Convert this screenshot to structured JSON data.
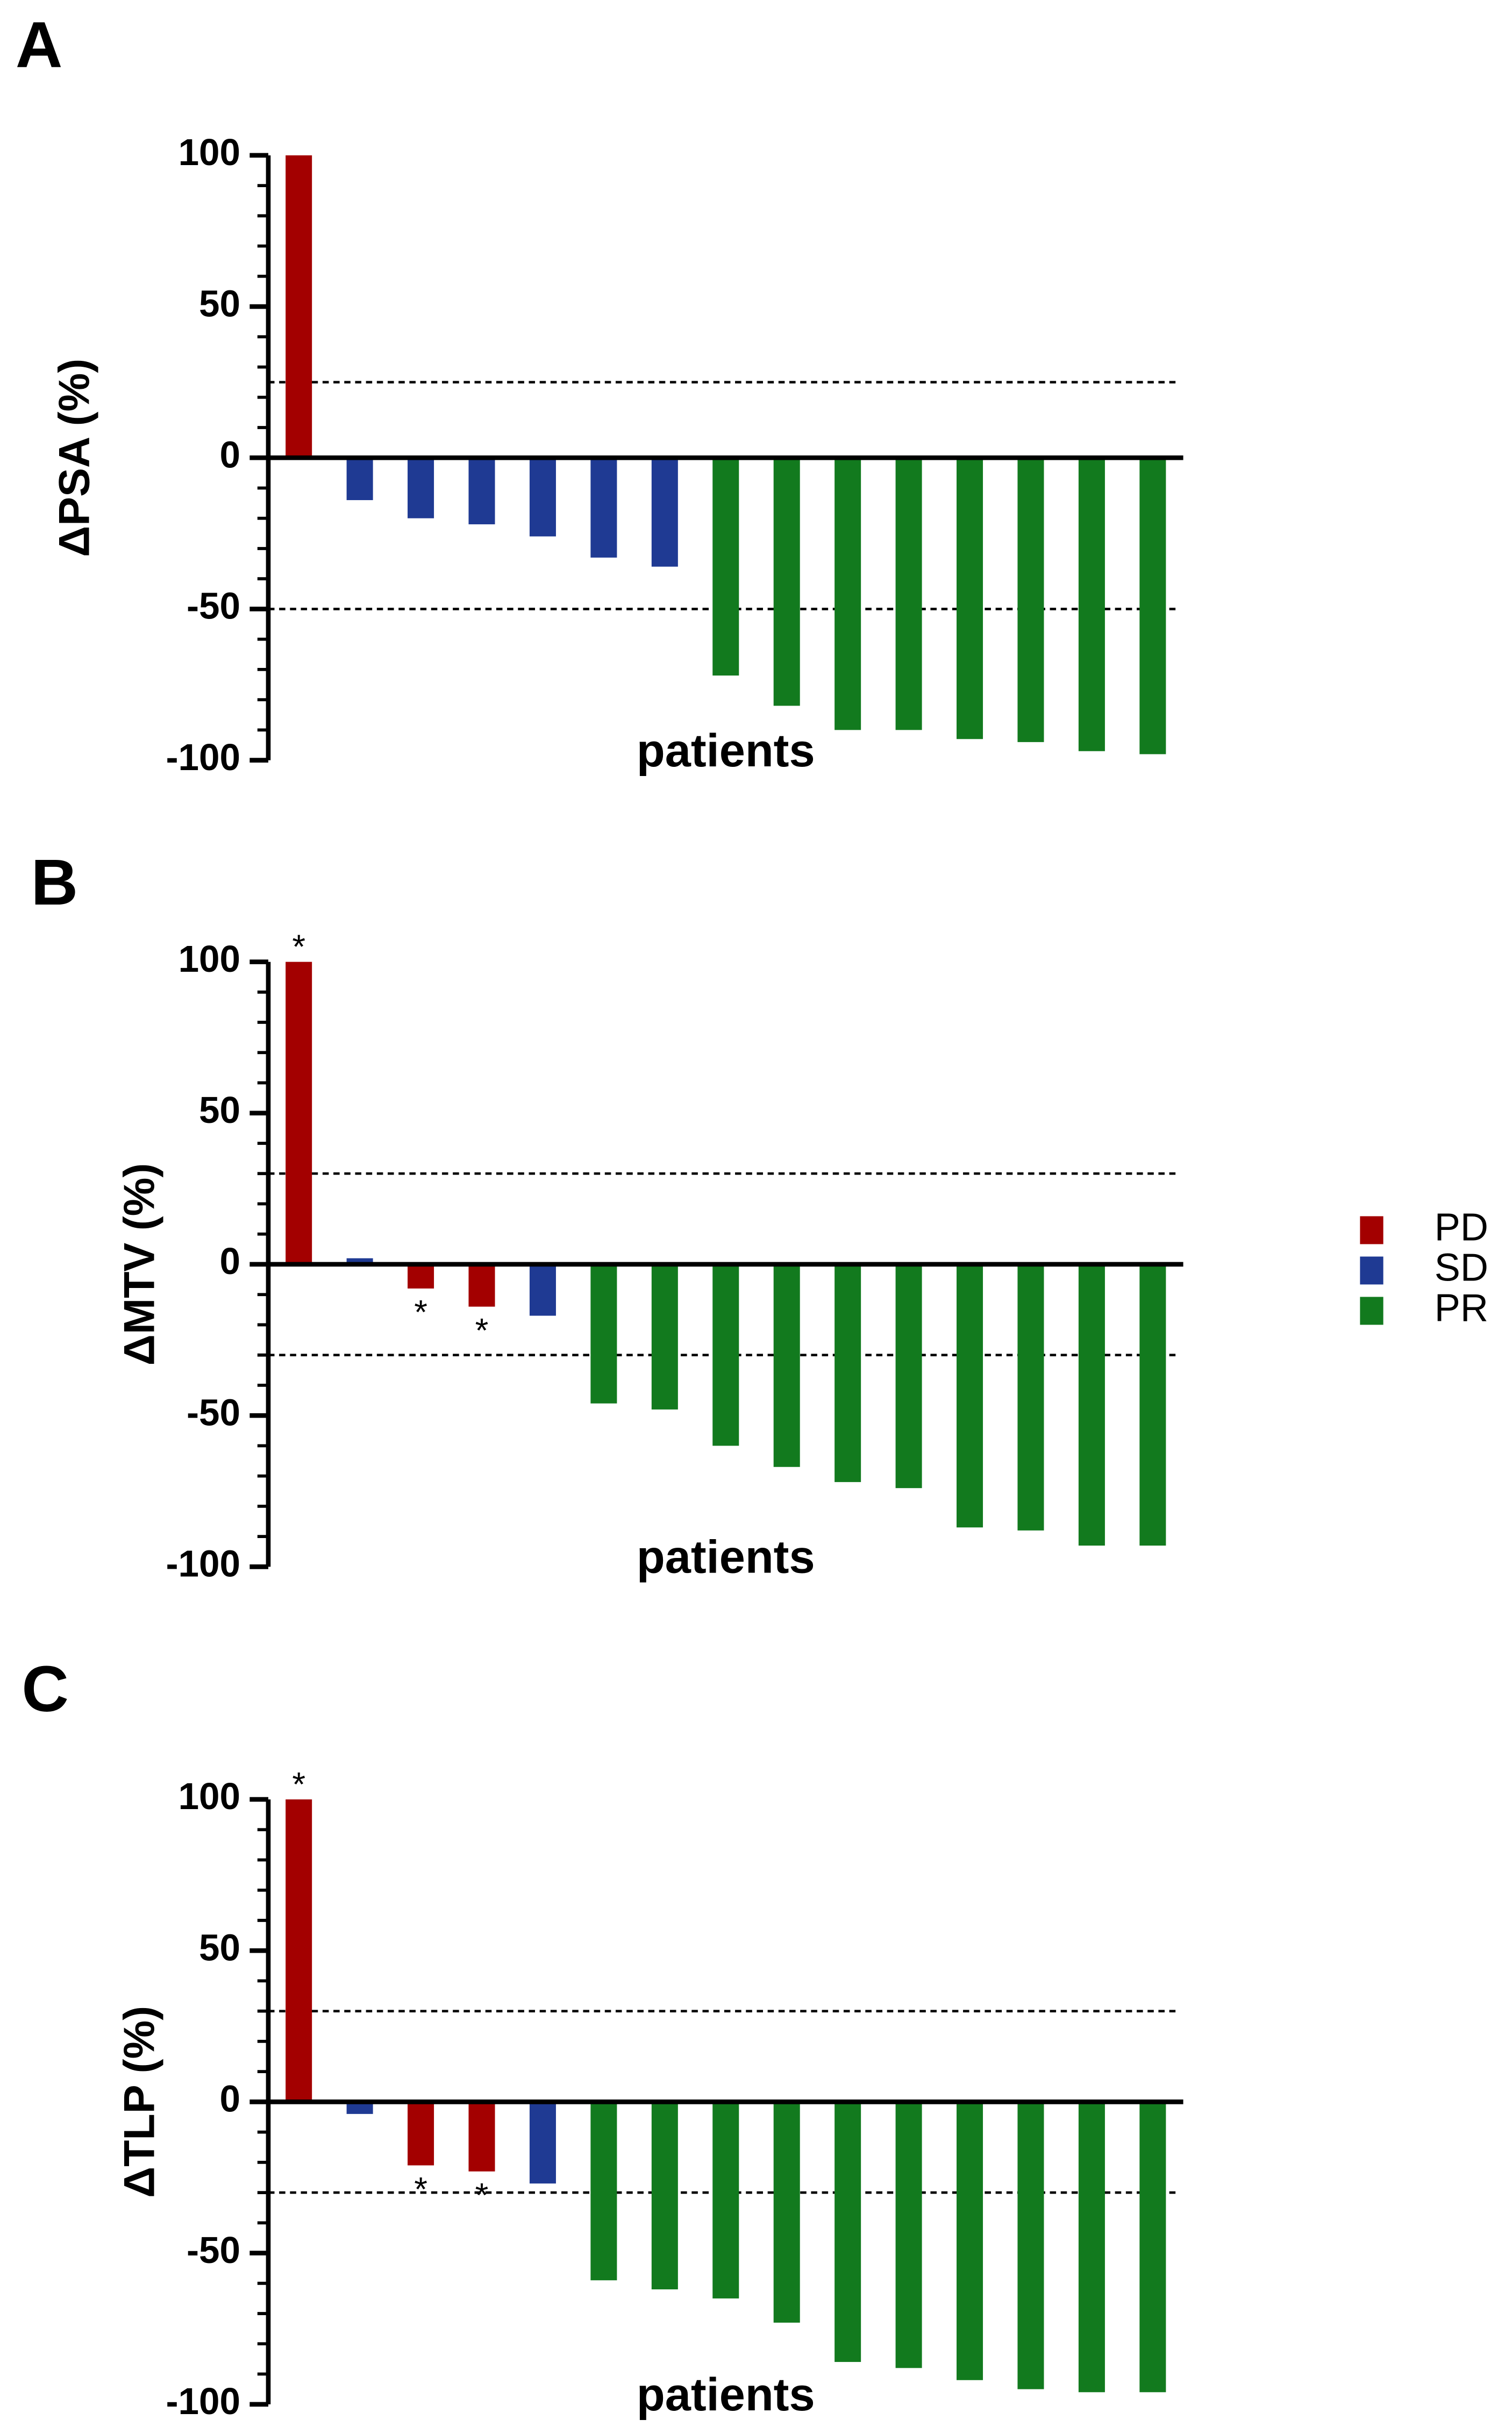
{
  "chart_data": [
    {
      "type": "bar",
      "panel": "A",
      "y_label": "ΔPSA (%)",
      "x_label": "patients",
      "categories": [
        null,
        null,
        null,
        null,
        null,
        null,
        null,
        null,
        null,
        null,
        null,
        null,
        null,
        null,
        null
      ],
      "series": [
        {
          "name": "PD",
          "color": "#a30000",
          "values": [
            100,
            null,
            null,
            null,
            null,
            null,
            null,
            null,
            null,
            null,
            null,
            null,
            null,
            null,
            null
          ]
        },
        {
          "name": "SD",
          "color": "#1f3a93",
          "values": [
            null,
            -14,
            -20,
            -22,
            -26,
            -33,
            -36,
            null,
            null,
            null,
            null,
            null,
            null,
            null,
            null
          ]
        },
        {
          "name": "PR",
          "color": "#127a1e",
          "values": [
            null,
            null,
            null,
            null,
            null,
            null,
            null,
            -72,
            -82,
            -90,
            -90,
            -93,
            -94,
            -97,
            -98
          ]
        }
      ],
      "annotations": [
        null,
        null,
        null,
        null,
        null,
        null,
        null,
        null,
        null,
        null,
        null,
        null,
        null,
        null,
        null
      ],
      "reference_lines": [
        25,
        -50
      ],
      "ylim": [
        -100,
        100
      ],
      "yticks": [
        -100,
        -50,
        0,
        50,
        100
      ],
      "minor_yticks": [
        -90,
        -80,
        -70,
        -60,
        -40,
        -30,
        -20,
        -10,
        10,
        20,
        30,
        40,
        60,
        70,
        80,
        90
      ]
    },
    {
      "type": "bar",
      "panel": "B",
      "y_label": "ΔMTV (%)",
      "x_label": "patients",
      "categories": [
        null,
        null,
        null,
        null,
        null,
        null,
        null,
        null,
        null,
        null,
        null,
        null,
        null,
        null,
        null
      ],
      "series": [
        {
          "name": "PD",
          "color": "#a30000",
          "values": [
            100,
            null,
            -8,
            -14,
            null,
            null,
            null,
            null,
            null,
            null,
            null,
            null,
            null,
            null,
            null
          ]
        },
        {
          "name": "SD",
          "color": "#1f3a93",
          "values": [
            null,
            2,
            null,
            null,
            -17,
            null,
            null,
            null,
            null,
            null,
            null,
            null,
            null,
            null,
            null
          ]
        },
        {
          "name": "PR",
          "color": "#127a1e",
          "values": [
            null,
            null,
            null,
            null,
            null,
            -46,
            -48,
            -60,
            -67,
            -72,
            -74,
            -87,
            -88,
            -93,
            -93
          ]
        }
      ],
      "annotations": [
        "*",
        null,
        "*",
        "*",
        null,
        null,
        null,
        null,
        null,
        null,
        null,
        null,
        null,
        null,
        null
      ],
      "reference_lines": [
        30,
        -30
      ],
      "ylim": [
        -100,
        100
      ],
      "yticks": [
        -100,
        -50,
        0,
        50,
        100
      ],
      "minor_yticks": [
        -90,
        -80,
        -70,
        -60,
        -40,
        -30,
        -20,
        -10,
        10,
        20,
        30,
        40,
        60,
        70,
        80,
        90
      ]
    },
    {
      "type": "bar",
      "panel": "C",
      "y_label": "ΔTLP (%)",
      "x_label": "patients",
      "categories": [
        null,
        null,
        null,
        null,
        null,
        null,
        null,
        null,
        null,
        null,
        null,
        null,
        null,
        null,
        null
      ],
      "series": [
        {
          "name": "PD",
          "color": "#a30000",
          "values": [
            100,
            null,
            -21,
            -23,
            null,
            null,
            null,
            null,
            null,
            null,
            null,
            null,
            null,
            null,
            null
          ]
        },
        {
          "name": "SD",
          "color": "#1f3a93",
          "values": [
            null,
            -4,
            null,
            null,
            -27,
            null,
            null,
            null,
            null,
            null,
            null,
            null,
            null,
            null,
            null
          ]
        },
        {
          "name": "PR",
          "color": "#127a1e",
          "values": [
            null,
            null,
            null,
            null,
            null,
            -59,
            -62,
            -65,
            -73,
            -86,
            -88,
            -92,
            -95,
            -96,
            -96
          ]
        }
      ],
      "annotations": [
        "*",
        null,
        "*",
        "*",
        null,
        null,
        null,
        null,
        null,
        null,
        null,
        null,
        null,
        null,
        null
      ],
      "reference_lines": [
        30,
        -30
      ],
      "ylim": [
        -100,
        100
      ],
      "yticks": [
        -100,
        -50,
        0,
        50,
        100
      ],
      "minor_yticks": [
        -90,
        -80,
        -70,
        -60,
        -40,
        -30,
        -20,
        -10,
        10,
        20,
        30,
        40,
        60,
        70,
        80,
        90
      ]
    }
  ]
}
